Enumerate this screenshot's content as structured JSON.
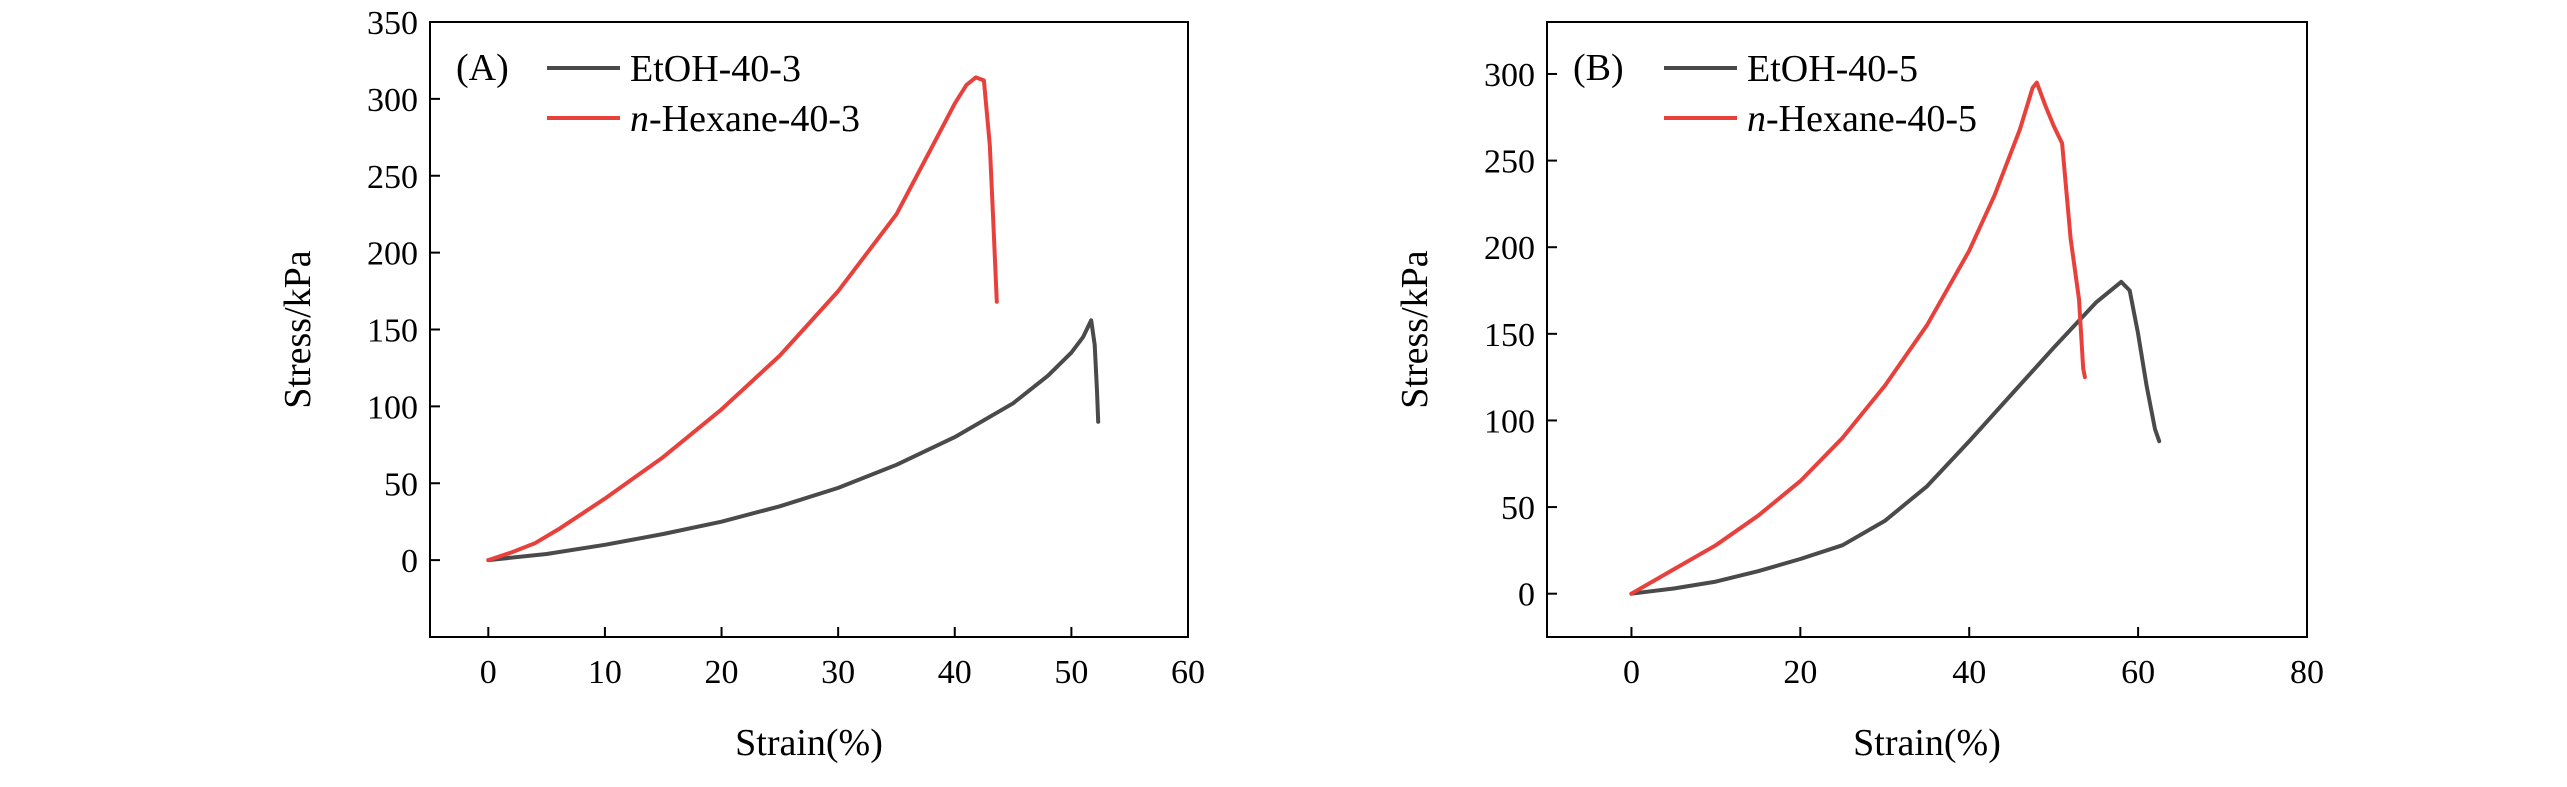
{
  "chart_data": [
    {
      "type": "line",
      "panel_label": "(A)",
      "xlabel": "Strain(%)",
      "ylabel": "Stress/kPa",
      "xlim": [
        -5,
        60
      ],
      "ylim": [
        -50,
        350
      ],
      "xticks": [
        0,
        10,
        20,
        30,
        40,
        50,
        60
      ],
      "yticks": [
        0,
        50,
        100,
        150,
        200,
        250,
        300,
        350
      ],
      "xtick_labels": [
        "0",
        "10",
        "20",
        "30",
        "40",
        "50",
        "60"
      ],
      "ytick_labels": [
        "0",
        "50",
        "100",
        "150",
        "200",
        "250",
        "300",
        "350"
      ],
      "grid": false,
      "legend_position": "top-left",
      "series": [
        {
          "name": "EtOH-40-3",
          "name_prefix": "",
          "name_suffix": "EtOH-40-3",
          "color": "#4a4a4a",
          "points": [
            [
              0,
              0
            ],
            [
              5,
              4
            ],
            [
              10,
              10
            ],
            [
              15,
              17
            ],
            [
              20,
              25
            ],
            [
              25,
              35
            ],
            [
              30,
              47
            ],
            [
              35,
              62
            ],
            [
              40,
              80
            ],
            [
              45,
              102
            ],
            [
              48,
              120
            ],
            [
              50,
              135
            ],
            [
              51,
              145
            ],
            [
              51.7,
              156
            ],
            [
              52,
              140
            ],
            [
              52.2,
              110
            ],
            [
              52.3,
              90
            ]
          ]
        },
        {
          "name": "n-Hexane-40-3",
          "name_prefix": "n",
          "name_suffix": "-Hexane-40-3",
          "color": "#e8413c",
          "points": [
            [
              0,
              0
            ],
            [
              2,
              5
            ],
            [
              4,
              11
            ],
            [
              6,
              20
            ],
            [
              10,
              40
            ],
            [
              15,
              67
            ],
            [
              20,
              98
            ],
            [
              25,
              133
            ],
            [
              30,
              175
            ],
            [
              35,
              225
            ],
            [
              38,
              268
            ],
            [
              40,
              297
            ],
            [
              41,
              309
            ],
            [
              41.8,
              314
            ],
            [
              42.5,
              312
            ],
            [
              43,
              270
            ],
            [
              43.3,
              220
            ],
            [
              43.6,
              168
            ]
          ]
        }
      ]
    },
    {
      "type": "line",
      "panel_label": "(B)",
      "xlabel": "Strain(%)",
      "ylabel": "Stress/kPa",
      "xlim": [
        -10,
        80
      ],
      "ylim": [
        -25,
        330
      ],
      "xticks": [
        0,
        20,
        40,
        60,
        80
      ],
      "yticks": [
        0,
        50,
        100,
        150,
        200,
        250,
        300
      ],
      "xtick_labels": [
        "0",
        "20",
        "40",
        "60",
        "80"
      ],
      "ytick_labels": [
        "0",
        "50",
        "100",
        "150",
        "200",
        "250",
        "300"
      ],
      "grid": false,
      "legend_position": "top-left",
      "series": [
        {
          "name": "EtOH-40-5",
          "name_prefix": "",
          "name_suffix": "EtOH-40-5",
          "color": "#4a4a4a",
          "points": [
            [
              0,
              0
            ],
            [
              5,
              3
            ],
            [
              10,
              7
            ],
            [
              15,
              13
            ],
            [
              20,
              20
            ],
            [
              25,
              28
            ],
            [
              30,
              42
            ],
            [
              35,
              62
            ],
            [
              40,
              88
            ],
            [
              45,
              115
            ],
            [
              50,
              142
            ],
            [
              55,
              168
            ],
            [
              58,
              180
            ],
            [
              59,
              175
            ],
            [
              60,
              150
            ],
            [
              61,
              120
            ],
            [
              62,
              95
            ],
            [
              62.5,
              88
            ]
          ]
        },
        {
          "name": "n-Hexane-40-5",
          "name_prefix": "n",
          "name_suffix": "-Hexane-40-5",
          "color": "#e8413c",
          "points": [
            [
              0,
              0
            ],
            [
              5,
              14
            ],
            [
              10,
              28
            ],
            [
              15,
              45
            ],
            [
              20,
              65
            ],
            [
              25,
              90
            ],
            [
              30,
              120
            ],
            [
              35,
              155
            ],
            [
              40,
              198
            ],
            [
              43,
              230
            ],
            [
              46,
              268
            ],
            [
              47.5,
              292
            ],
            [
              48,
              295
            ],
            [
              49,
              282
            ],
            [
              50,
              270
            ],
            [
              51,
              260
            ],
            [
              52,
              205
            ],
            [
              53,
              170
            ],
            [
              53.5,
              130
            ],
            [
              53.7,
              125
            ]
          ]
        }
      ]
    }
  ]
}
